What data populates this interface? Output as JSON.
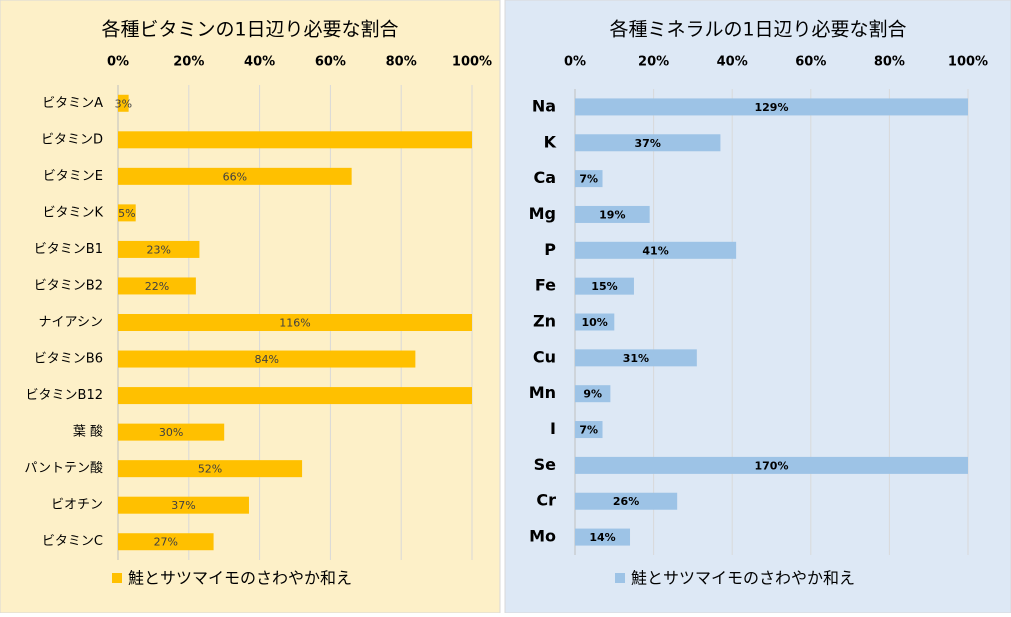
{
  "chart_data": [
    {
      "type": "bar",
      "title": "各種ビタミンの1日辺り必要な割合",
      "categories": [
        "ビタミンA",
        "ビタミンD",
        "ビタミンE",
        "ビタミンK",
        "ビタミンB1",
        "ビタミンB2",
        "ナイアシン",
        "ビタミンB6",
        "ビタミンB12",
        "葉 酸",
        "パントテン酸",
        "ビオチン",
        "ビタミンC"
      ],
      "series": [
        {
          "name": "鮭とサツマイモのさわやか和え",
          "color": "#ffc000",
          "values": [
            3,
            100,
            66,
            5,
            23,
            22,
            116,
            84,
            100,
            30,
            52,
            37,
            27
          ],
          "value_labels": [
            "3%",
            null,
            "66%",
            "5%",
            "23%",
            "22%",
            "116%",
            "84%",
            null,
            "30%",
            "52%",
            "37%",
            "27%"
          ]
        }
      ],
      "xlim": [
        0,
        100
      ],
      "xticks": [
        {
          "value": 0,
          "label": "0%"
        },
        {
          "value": 20,
          "label": "20%"
        },
        {
          "value": 40,
          "label": "40%"
        },
        {
          "value": 60,
          "label": "60%"
        },
        {
          "value": 80,
          "label": "80%"
        },
        {
          "value": 100,
          "label": "100%"
        }
      ],
      "grid": true,
      "legend": "bottom"
    },
    {
      "type": "bar",
      "title": "各種ミネラルの1日辺り必要な割合",
      "categories": [
        "Na",
        "K",
        "Ca",
        "Mg",
        "P",
        "Fe",
        "Zn",
        "Cu",
        "Mn",
        "I",
        "Se",
        "Cr",
        "Mo"
      ],
      "series": [
        {
          "name": "鮭とサツマイモのさわやか和え",
          "color": "#9dc3e6",
          "values": [
            129,
            37,
            7,
            19,
            41,
            15,
            10,
            31,
            9,
            7,
            170,
            26,
            14
          ],
          "value_labels": [
            "129%",
            "37%",
            "7%",
            "19%",
            "41%",
            "15%",
            "10%",
            "31%",
            "9%",
            "7%",
            "170%",
            "26%",
            "14%"
          ]
        }
      ],
      "xlim": [
        0,
        100
      ],
      "xticks": [
        {
          "value": 0,
          "label": "0%"
        },
        {
          "value": 20,
          "label": "20%"
        },
        {
          "value": 40,
          "label": "40%"
        },
        {
          "value": 60,
          "label": "60%"
        },
        {
          "value": 80,
          "label": "80%"
        },
        {
          "value": 100,
          "label": "100%"
        }
      ],
      "grid": true,
      "legend": "bottom"
    }
  ]
}
